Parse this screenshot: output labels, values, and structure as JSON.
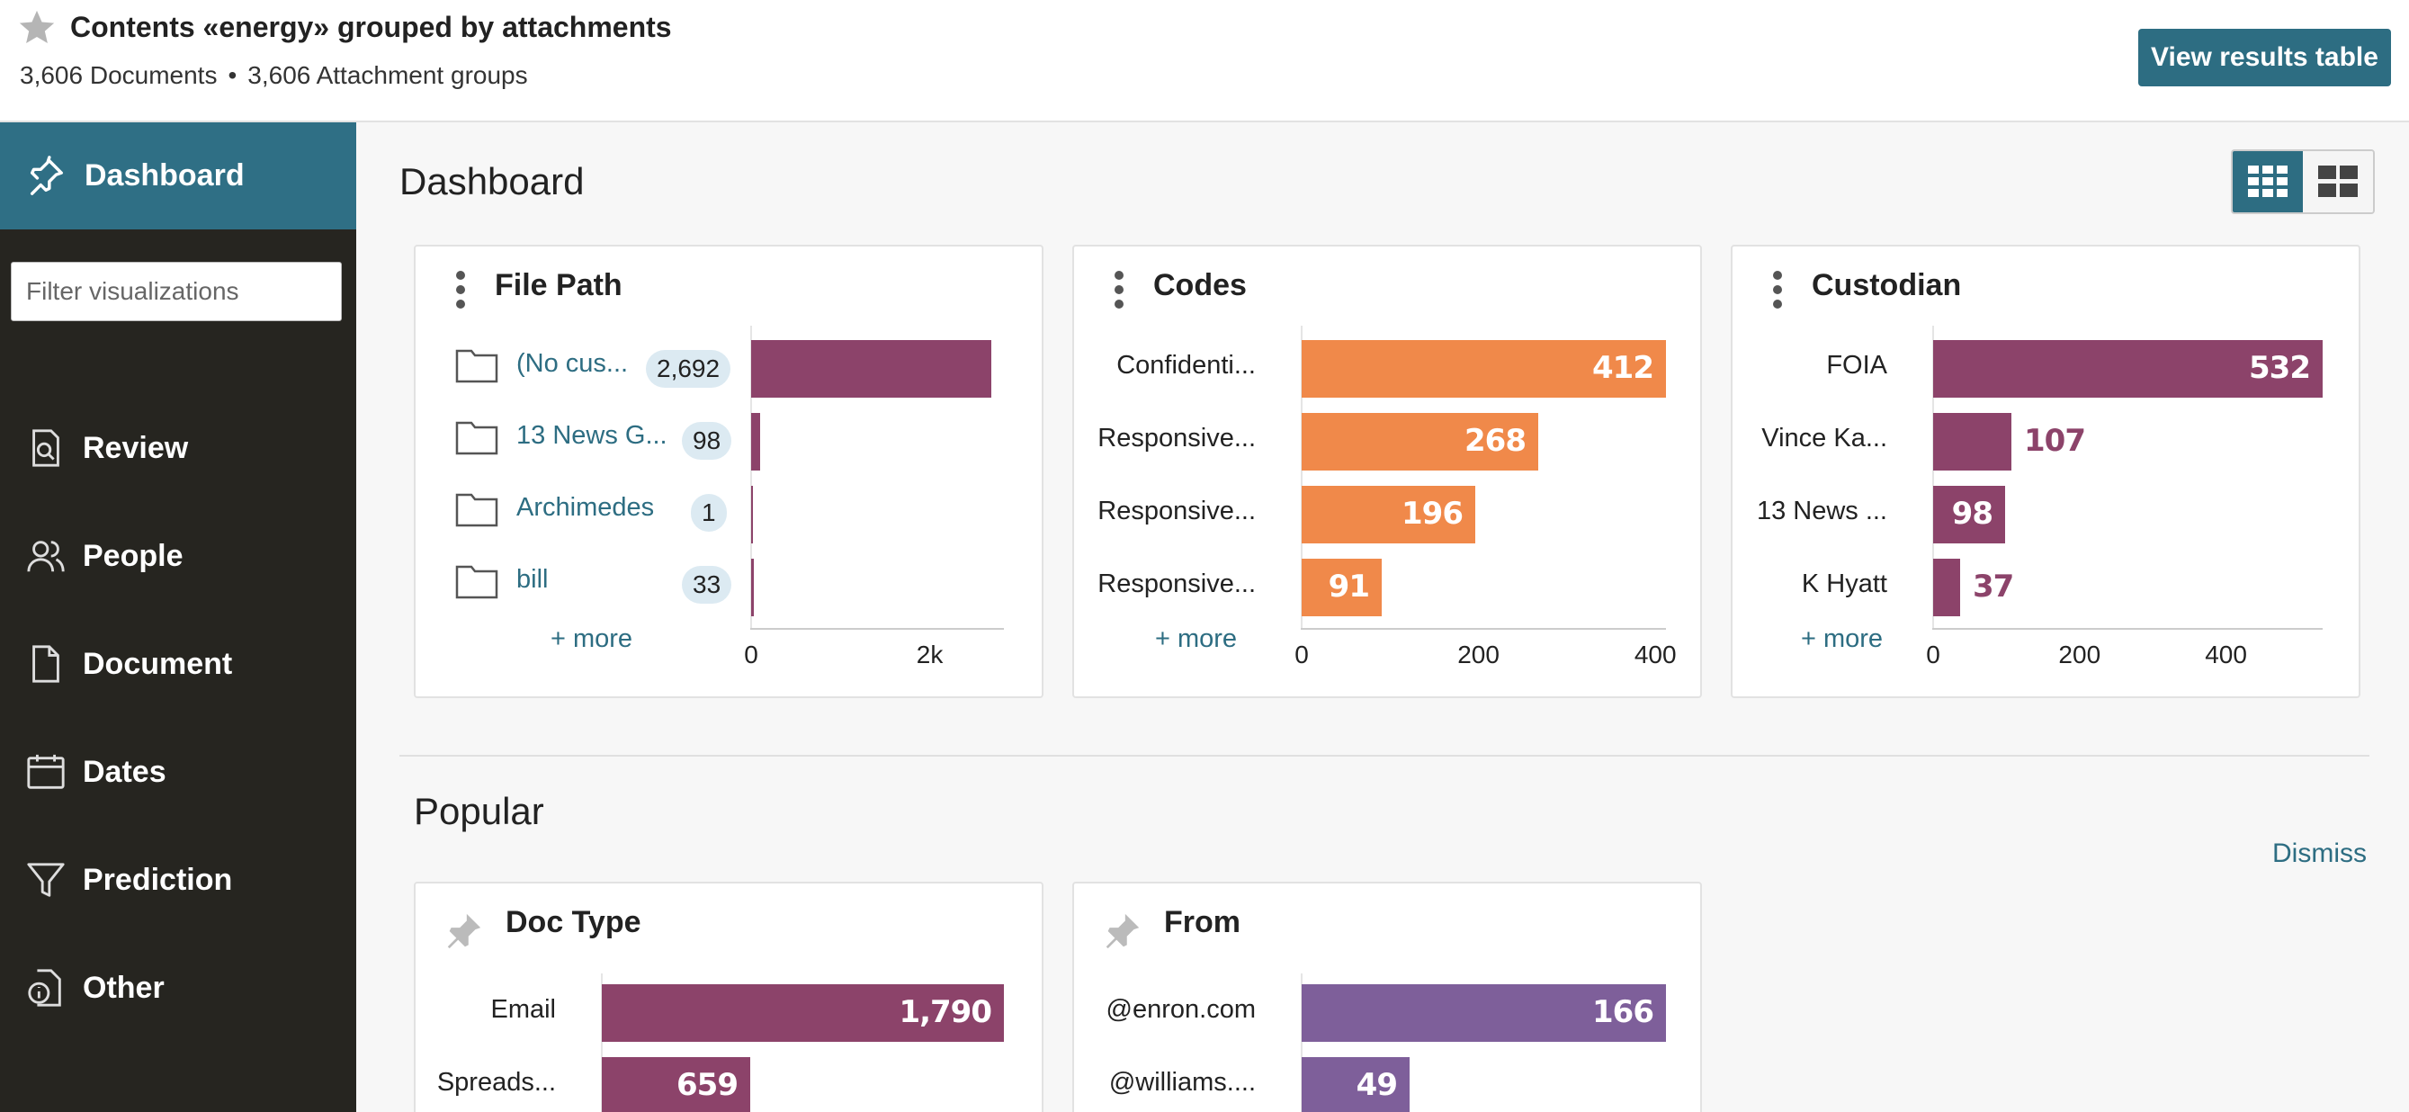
{
  "header": {
    "title": "Contents «energy» grouped by attachments",
    "documents": "3,606 Documents",
    "separator": "•",
    "attachment_groups": "3,606 Attachment groups",
    "view_results_label": "View results table",
    "accent": "#2d6d82"
  },
  "sidebar": {
    "active_label": "Dashboard",
    "filter_placeholder": "Filter visualizations",
    "items": [
      {
        "label": "Review",
        "icon": "search-document-icon"
      },
      {
        "label": "People",
        "icon": "people-icon"
      },
      {
        "label": "Document",
        "icon": "document-icon"
      },
      {
        "label": "Dates",
        "icon": "calendar-icon"
      },
      {
        "label": "Prediction",
        "icon": "funnel-icon"
      },
      {
        "label": "Other",
        "icon": "document-info-icon"
      }
    ]
  },
  "dashboard": {
    "title": "Dashboard",
    "popular_title": "Popular",
    "dismiss_label": "Dismiss"
  },
  "chart_data": [
    {
      "type": "bar",
      "title": "File Path",
      "categories": [
        "(No cus...",
        "13 News G...",
        "Archimedes",
        "bill"
      ],
      "values": [
        2692,
        98,
        1,
        33
      ],
      "value_labels": [
        "2,692",
        "98",
        "1",
        "33"
      ],
      "ticks": [
        "0",
        "2k"
      ],
      "tick_values": [
        0,
        2000
      ],
      "xlim": [
        0,
        2830
      ],
      "color": "#8c436a",
      "more_label": "+ more"
    },
    {
      "type": "bar",
      "title": "Codes",
      "categories": [
        "Confidenti...",
        "Responsive...",
        "Responsive...",
        "Responsive..."
      ],
      "values": [
        412,
        268,
        196,
        91
      ],
      "value_labels": [
        "412",
        "268",
        "196",
        "91"
      ],
      "ticks": [
        "0",
        "200",
        "400"
      ],
      "tick_values": [
        0,
        200,
        400
      ],
      "xlim": [
        0,
        412
      ],
      "color": "#f0894a",
      "more_label": "+ more"
    },
    {
      "type": "bar",
      "title": "Custodian",
      "categories": [
        "FOIA",
        "Vince Ka...",
        "13 News ...",
        "K Hyatt"
      ],
      "values": [
        532,
        107,
        98,
        37
      ],
      "value_labels": [
        "532",
        "107",
        "98",
        "37"
      ],
      "ticks": [
        "0",
        "200",
        "400"
      ],
      "tick_values": [
        0,
        200,
        400
      ],
      "xlim": [
        0,
        532
      ],
      "color": "#8c436a",
      "more_label": "+ more"
    },
    {
      "type": "bar",
      "title": "Doc Type",
      "categories": [
        "Email",
        "Spreads..."
      ],
      "values": [
        1790,
        659
      ],
      "value_labels": [
        "1,790",
        "659"
      ],
      "xlim": [
        0,
        1790
      ],
      "color": "#8c436a"
    },
    {
      "type": "bar",
      "title": "From",
      "categories": [
        "@enron.com",
        "@williams...."
      ],
      "values": [
        166,
        49
      ],
      "value_labels": [
        "166",
        "49"
      ],
      "xlim": [
        0,
        166
      ],
      "color": "#7e5f9a"
    }
  ]
}
